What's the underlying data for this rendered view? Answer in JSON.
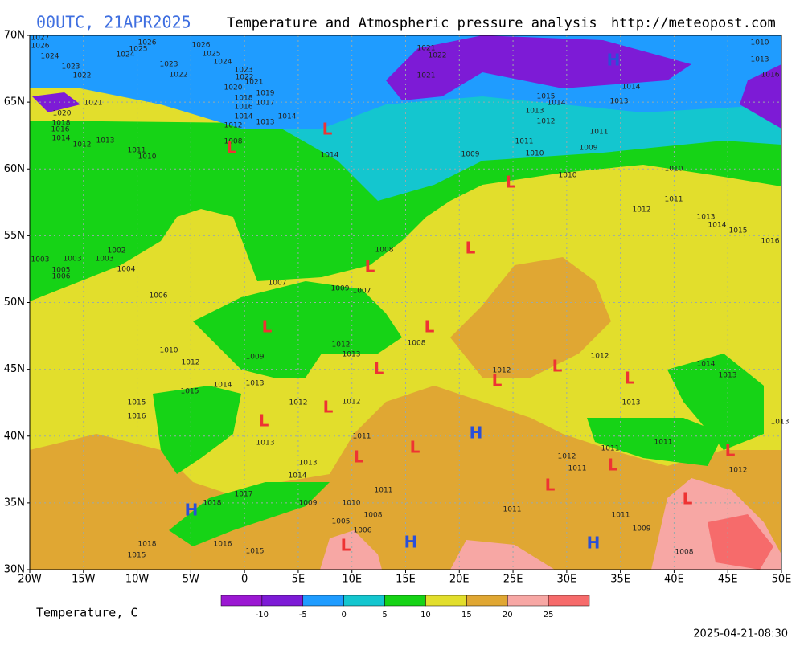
{
  "header": {
    "run": "00UTC, 21APR2025",
    "title": "Temperature and Atmospheric pressure analysis",
    "url": "http://meteopost.com"
  },
  "lat_labels": [
    "70N",
    "65N",
    "60N",
    "55N",
    "50N",
    "45N",
    "40N",
    "35N",
    "30N"
  ],
  "lon_labels": [
    "20W",
    "15W",
    "10W",
    "5W",
    "0",
    "5E",
    "10E",
    "15E",
    "20E",
    "25E",
    "30E",
    "35E",
    "40E",
    "45E",
    "50E"
  ],
  "legend": {
    "title": "Temperature, C",
    "colors": [
      "#9b18d2",
      "#7d1bd6",
      "#1f9cff",
      "#14c6cf",
      "#16d316",
      "#e2de2c",
      "#e0a733",
      "#f7a7a4",
      "#f66b6b"
    ],
    "ticks": [
      -10,
      -5,
      0,
      5,
      10,
      15,
      20,
      25
    ]
  },
  "pressure_centers": [
    "L",
    "L",
    "L",
    "L",
    "L",
    "L",
    "L",
    "L",
    "L",
    "L",
    "L",
    "L",
    "L",
    "L",
    "L",
    "L",
    "L",
    "L",
    "L",
    "L",
    "H",
    "H",
    "H",
    "H",
    "H"
  ],
  "isobar_labels": [
    1027,
    1026,
    1024,
    1023,
    1022,
    1021,
    1020,
    1018,
    1016,
    1014,
    1012,
    1013,
    1011,
    1010,
    1026,
    1025,
    1024,
    1023,
    1022,
    1026,
    1025,
    1024,
    1023,
    1022,
    1021,
    1020,
    1019,
    1018,
    1017,
    1016,
    1014,
    1013,
    1014,
    1012,
    1008,
    1014,
    1021,
    1022,
    1021,
    1015,
    1014,
    1013,
    1012,
    1014,
    1013,
    1011,
    1009,
    1009,
    1010,
    1011,
    1010,
    1010,
    1011,
    1012,
    1013,
    1014,
    1015,
    1016,
    1010,
    1013,
    1016,
    1003,
    1003,
    1003,
    1002,
    1005,
    1006,
    1004,
    1006,
    1007,
    1009,
    1008,
    1007,
    1010,
    1012,
    1009,
    1012,
    1013,
    1008,
    1012,
    1014,
    1013,
    1012,
    1015,
    1014,
    1013,
    1015,
    1016,
    1012,
    1012,
    1013,
    1013,
    1011,
    1011,
    1011,
    1012,
    1011,
    1013,
    1014,
    1017,
    1018,
    1009,
    1010,
    1008,
    1011,
    1011,
    1011,
    1009,
    1005,
    1006,
    1018,
    1015,
    1016,
    1015,
    1008,
    1012,
    1013
  ],
  "timestamp": "2025-04-21-08:30"
}
